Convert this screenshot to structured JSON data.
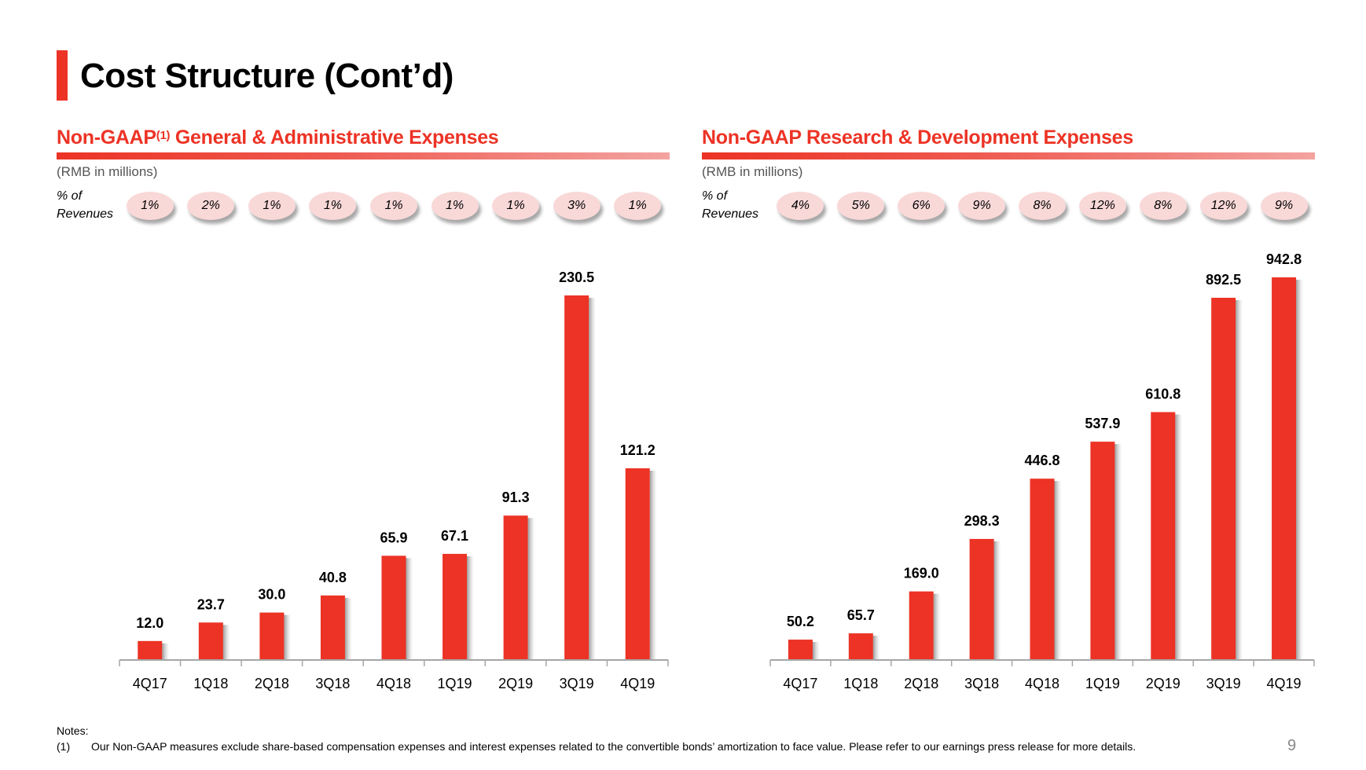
{
  "slide": {
    "title": "Cost Structure (Cont’d)",
    "accent_color": "#ec3325",
    "page_number": "9"
  },
  "notes": {
    "heading": "Notes:",
    "items": [
      {
        "marker": "(1)",
        "text": "Our Non-GAAP measures exclude share-based compensation expenses and interest expenses related to the convertible bonds’ amortization to face value. Please refer to our earnings press release for more details."
      }
    ]
  },
  "panels": [
    {
      "title": "Non-GAAP",
      "title_sup": "(1)",
      "title_rest": " General & Administrative Expenses",
      "unit": "(RMB in millions)",
      "pct_label_line1": "% of",
      "pct_label_line2": "Revenues",
      "pct_of_revenues": [
        "1%",
        "2%",
        "1%",
        "1%",
        "1%",
        "1%",
        "1%",
        "3%",
        "1%"
      ]
    },
    {
      "title": "Non-GAAP Research & Development Expenses",
      "title_sup": "",
      "title_rest": "",
      "unit": "(RMB in millions)",
      "pct_label_line1": "% of",
      "pct_label_line2": "Revenues",
      "pct_of_revenues": [
        "4%",
        "5%",
        "6%",
        "9%",
        "8%",
        "12%",
        "8%",
        "12%",
        "9%"
      ]
    }
  ],
  "chart_data": [
    {
      "type": "bar",
      "title": "Non-GAAP(1) General & Administrative Expenses",
      "ylabel": "RMB in millions",
      "categories": [
        "4Q17",
        "1Q18",
        "2Q18",
        "3Q18",
        "4Q18",
        "1Q19",
        "2Q19",
        "3Q19",
        "4Q19"
      ],
      "values": [
        12.0,
        23.7,
        30.0,
        40.8,
        65.9,
        67.1,
        91.3,
        230.5,
        121.2
      ],
      "data_labels": [
        "12.0",
        "23.7",
        "30.0",
        "40.8",
        "65.9",
        "67.1",
        "91.3",
        "230.5",
        "121.2"
      ],
      "ylim": [
        0,
        230.5
      ],
      "grid": false,
      "bar_color": "#ec3325"
    },
    {
      "type": "bar",
      "title": "Non-GAAP Research & Development Expenses",
      "ylabel": "RMB in millions",
      "categories": [
        "4Q17",
        "1Q18",
        "2Q18",
        "3Q18",
        "4Q18",
        "1Q19",
        "2Q19",
        "3Q19",
        "4Q19"
      ],
      "values": [
        50.2,
        65.7,
        169.0,
        298.3,
        446.8,
        537.9,
        610.8,
        892.5,
        942.8
      ],
      "data_labels": [
        "50.2",
        "65.7",
        "169.0",
        "298.3",
        "446.8",
        "537.9",
        "610.8",
        "892.5",
        "942.8"
      ],
      "ylim": [
        0,
        942.8
      ],
      "grid": false,
      "bar_color": "#ec3325"
    }
  ]
}
